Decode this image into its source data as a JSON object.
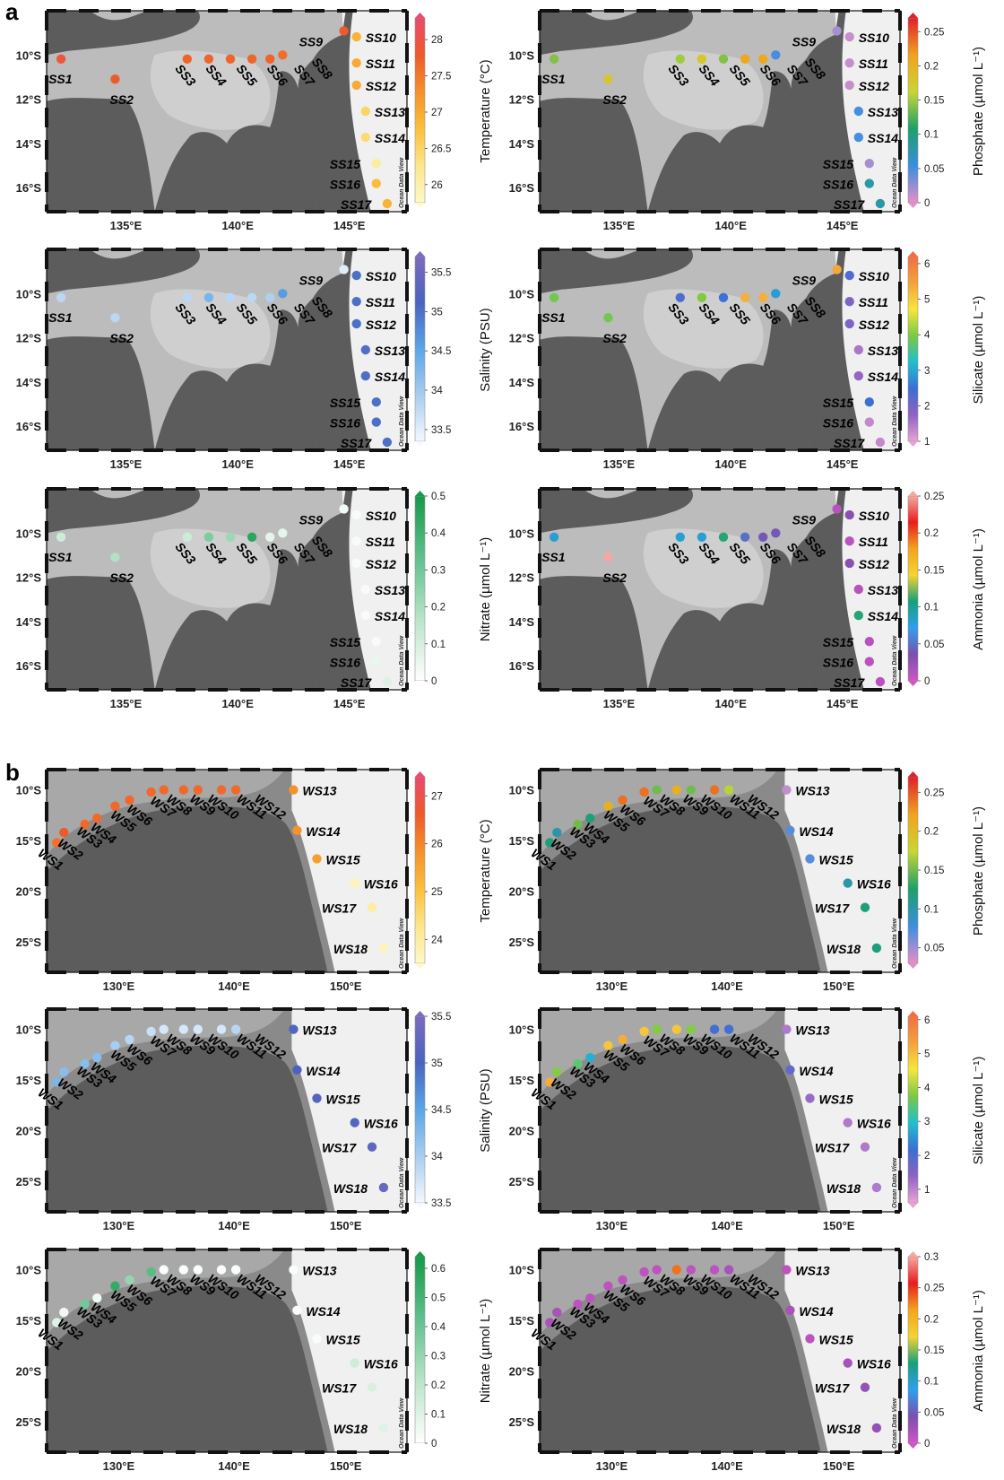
{
  "figure": {
    "panel_labels": [
      "a",
      "b"
    ],
    "watermark": "Ocean Data View",
    "colors": {
      "land": "#5c5c5c",
      "ocean_shallow": "#f0f0f0",
      "ocean_mid": "#bcbcbc",
      "ocean_deep": "#8a8a8a"
    },
    "colormaps": {
      "temperature": [
        "#fff8c8",
        "#fde68a",
        "#fbbf3c",
        "#f5902a",
        "#ee5a2a",
        "#ea4a6e"
      ],
      "phosphate": [
        "#e58fc8",
        "#3a8ee0",
        "#1aa06a",
        "#c9d631",
        "#f2a21e",
        "#e0202a"
      ],
      "salinity": [
        "#f4f8ff",
        "#a9cdf0",
        "#5aa6e6",
        "#4a63c0",
        "#7b6bbd"
      ],
      "nitrate": [
        "#ffffff",
        "#b9e4c8",
        "#60c08c",
        "#149a4a"
      ],
      "silicate": [
        "#e9a2d5",
        "#8f62c2",
        "#3b6fd4",
        "#1ec0cf",
        "#7ac943",
        "#f6e63b",
        "#f4a23a",
        "#f26e42"
      ],
      "ammonia": [
        "#cf55c4",
        "#7c4fae",
        "#2d9ff0",
        "#14a07a",
        "#f3d431",
        "#f5a31c",
        "#ea1c1c",
        "#f6a8a0"
      ]
    }
  },
  "chart_data": [
    {
      "type": "scatter",
      "panel": "a",
      "variable": "Temperature",
      "colormap": "temperature",
      "cb_title": "Temperature (°C)",
      "xlim": [
        131.5,
        146.8
      ],
      "ylim": [
        8.6,
        17.1
      ],
      "xticks": [
        "135°E",
        "140°E",
        "145°E"
      ],
      "yticks": [
        "10°S",
        "12°S",
        "14°S",
        "16°S"
      ],
      "cb_range": [
        25.75,
        28.3
      ],
      "cb_ticks": [
        "26",
        "26.5",
        "27",
        "27.5",
        "28"
      ],
      "stations": [
        "SS1",
        "SS2",
        "SS3",
        "SS4",
        "SS5",
        "SS6",
        "SS7",
        "SS8",
        "SS9",
        "SS10",
        "SS11",
        "SS12",
        "SS13",
        "SS14",
        "SS15",
        "SS16",
        "SS17"
      ],
      "values": [
        27.9,
        27.8,
        27.7,
        27.7,
        27.7,
        27.7,
        27.7,
        27.6,
        27.8,
        26.9,
        27.0,
        27.0,
        26.5,
        26.4,
        26.1,
        26.8,
        26.9
      ]
    },
    {
      "type": "scatter",
      "panel": "a",
      "variable": "Phosphate",
      "colormap": "phosphate",
      "cb_title": "Phosphate (µmol L⁻¹)",
      "xlim": [
        131.5,
        146.8
      ],
      "ylim": [
        8.6,
        17.1
      ],
      "xticks": [
        "135°E",
        "140°E",
        "145°E"
      ],
      "yticks": [
        "10°S",
        "12°S",
        "14°S",
        "16°S"
      ],
      "cb_range": [
        0,
        0.27
      ],
      "cb_ticks": [
        "0",
        "0.05",
        "0.1",
        "0.15",
        "0.2",
        "0.25"
      ],
      "stations": [
        "SS1",
        "SS2",
        "SS3",
        "SS4",
        "SS5",
        "SS6",
        "SS7",
        "SS8",
        "SS9",
        "SS10",
        "SS11",
        "SS12",
        "SS13",
        "SS14",
        "SS15",
        "SS16",
        "SS17"
      ],
      "values": [
        0.14,
        0.18,
        0.15,
        0.18,
        0.14,
        0.21,
        0.21,
        0.05,
        0.02,
        0.01,
        0.01,
        0.01,
        0.05,
        0.05,
        0.02,
        0.08,
        0.08
      ]
    },
    {
      "type": "scatter",
      "panel": "a",
      "variable": "Salinity",
      "colormap": "salinity",
      "cb_title": "Salinity (PSU)",
      "xlim": [
        131.5,
        146.8
      ],
      "ylim": [
        8.6,
        17.1
      ],
      "xticks": [
        "135°E",
        "140°E",
        "145°E"
      ],
      "yticks": [
        "10°S",
        "12°S",
        "14°S",
        "16°S"
      ],
      "cb_range": [
        33.35,
        35.7
      ],
      "cb_ticks": [
        "33.5",
        "34",
        "34.5",
        "35",
        "35.5"
      ],
      "stations": [
        "SS1",
        "SS2",
        "SS3",
        "SS4",
        "SS5",
        "SS6",
        "SS7",
        "SS8",
        "SS9",
        "SS10",
        "SS11",
        "SS12",
        "SS13",
        "SS14",
        "SS15",
        "SS16",
        "SS17"
      ],
      "values": [
        33.8,
        33.8,
        33.8,
        34.3,
        33.8,
        33.8,
        33.9,
        34.6,
        33.5,
        35.0,
        35.0,
        35.0,
        35.0,
        35.0,
        35.0,
        35.0,
        35.0
      ]
    },
    {
      "type": "scatter",
      "panel": "a",
      "variable": "Silicate",
      "colormap": "silicate",
      "cb_title": "Silicate (µmol L⁻¹)",
      "xlim": [
        131.5,
        146.8
      ],
      "ylim": [
        8.6,
        17.1
      ],
      "xticks": [
        "135°E",
        "140°E",
        "145°E"
      ],
      "yticks": [
        "10°S",
        "12°S",
        "14°S",
        "16°S"
      ],
      "cb_range": [
        1,
        6.2
      ],
      "cb_ticks": [
        "1",
        "2",
        "3",
        "4",
        "5",
        "6"
      ],
      "stations": [
        "SS1",
        "SS2",
        "SS3",
        "SS4",
        "SS5",
        "SS6",
        "SS7",
        "SS8",
        "SS9",
        "SS10",
        "SS11",
        "SS12",
        "SS13",
        "SS14",
        "SS15",
        "SS16",
        "SS17"
      ],
      "values": [
        3.9,
        3.9,
        2.3,
        4.0,
        2.5,
        5.3,
        5.3,
        2.9,
        5.4,
        2.3,
        1.9,
        1.9,
        1.5,
        1.7,
        2.5,
        1.3,
        1.3
      ]
    },
    {
      "type": "scatter",
      "panel": "a",
      "variable": "Nitrate",
      "colormap": "nitrate",
      "cb_title": "Nitrate (µmol L⁻¹)",
      "xlim": [
        131.5,
        146.8
      ],
      "ylim": [
        8.6,
        17.1
      ],
      "xticks": [
        "135°E",
        "140°E",
        "145°E"
      ],
      "yticks": [
        "10°S",
        "12°S",
        "14°S",
        "16°S"
      ],
      "cb_range": [
        0,
        0.5
      ],
      "cb_ticks": [
        "0",
        "0.1",
        "0.2",
        "0.3",
        "0.4",
        "0.5"
      ],
      "stations": [
        "SS1",
        "SS2",
        "SS3",
        "SS4",
        "SS5",
        "SS6",
        "SS7",
        "SS8",
        "SS9",
        "SS10",
        "SS11",
        "SS12",
        "SS13",
        "SS14",
        "SS15",
        "SS16",
        "SS17"
      ],
      "values": [
        0.12,
        0.18,
        0.12,
        0.28,
        0.22,
        0.45,
        0.06,
        0.06,
        0.03,
        0.02,
        0.02,
        0.02,
        0.02,
        0.02,
        0.02,
        0.05,
        0.08
      ]
    },
    {
      "type": "scatter",
      "panel": "a",
      "variable": "Ammonia",
      "colormap": "ammonia",
      "cb_title": "Ammonia (µmol L⁻¹)",
      "xlim": [
        131.5,
        146.8
      ],
      "ylim": [
        8.6,
        17.1
      ],
      "xticks": [
        "135°E",
        "140°E",
        "145°E"
      ],
      "yticks": [
        "10°S",
        "12°S",
        "14°S",
        "16°S"
      ],
      "cb_range": [
        0,
        0.25
      ],
      "cb_ticks": [
        "0",
        "0.05",
        "0.1",
        "0.15",
        "0.2",
        "0.25"
      ],
      "stations": [
        "SS1",
        "SS2",
        "SS3",
        "SS4",
        "SS5",
        "SS6",
        "SS7",
        "SS8",
        "SS9",
        "SS10",
        "SS11",
        "SS12",
        "SS13",
        "SS14",
        "SS15",
        "SS16",
        "SS17"
      ],
      "values": [
        0.08,
        0.25,
        0.08,
        0.08,
        0.11,
        0.05,
        0.04,
        0.04,
        0.01,
        0.03,
        0.01,
        0.03,
        0.01,
        0.11,
        0.01,
        0.01,
        0.01
      ]
    },
    {
      "type": "scatter",
      "panel": "b",
      "variable": "Temperature",
      "colormap": "temperature",
      "cb_title": "Temperature (°C)",
      "xlim": [
        121.5,
        154.7
      ],
      "ylim": [
        8.3,
        26.3
      ],
      "xticks": [
        "130°E",
        "140°E",
        "150°E"
      ],
      "yticks": [
        "10°S",
        "15°S",
        "20°S",
        "25°S"
      ],
      "cb_range": [
        23.5,
        27.4
      ],
      "cb_ticks": [
        "24",
        "25",
        "26",
        "27"
      ],
      "stations": [
        "WS1",
        "WS2",
        "WS3",
        "WS4",
        "WS5",
        "WS6",
        "WS7",
        "WS8",
        "WS9",
        "WS10",
        "WS11",
        "WS12",
        "WS13",
        "WS14",
        "WS15",
        "WS16",
        "WS17",
        "WS18"
      ],
      "values": [
        26.3,
        26.6,
        26.4,
        26.4,
        26.4,
        26.4,
        26.4,
        26.4,
        26.4,
        26.4,
        26.4,
        26.4,
        25.8,
        25.8,
        25.6,
        23.7,
        24.0,
        23.7
      ]
    },
    {
      "type": "scatter",
      "panel": "b",
      "variable": "Phosphate",
      "colormap": "phosphate",
      "cb_title": "Phosphate (µmol L⁻¹)",
      "xlim": [
        121.5,
        154.7
      ],
      "ylim": [
        8.3,
        26.3
      ],
      "xticks": [
        "130°E",
        "140°E",
        "150°E"
      ],
      "yticks": [
        "10°S",
        "15°S",
        "20°S",
        "25°S"
      ],
      "cb_range": [
        0.03,
        0.27
      ],
      "cb_ticks": [
        "0.05",
        "0.1",
        "0.15",
        "0.2",
        "0.25"
      ],
      "stations": [
        "WS1",
        "WS2",
        "WS3",
        "WS4",
        "WS5",
        "WS6",
        "WS7",
        "WS8",
        "WS9",
        "WS10",
        "WS11",
        "WS12",
        "WS13",
        "WS14",
        "WS15",
        "WS16",
        "WS17",
        "WS18"
      ],
      "values": [
        0.12,
        0.1,
        0.15,
        0.12,
        0.21,
        0.24,
        0.24,
        0.15,
        0.21,
        0.15,
        0.24,
        0.17,
        0.04,
        0.07,
        0.07,
        0.1,
        0.12,
        0.12
      ]
    },
    {
      "type": "scatter",
      "panel": "b",
      "variable": "Salinity",
      "colormap": "salinity",
      "cb_title": "Salinity (PSU)",
      "xlim": [
        121.5,
        154.7
      ],
      "ylim": [
        8.3,
        26.3
      ],
      "xticks": [
        "130°E",
        "140°E",
        "150°E"
      ],
      "yticks": [
        "10°S",
        "15°S",
        "20°S",
        "25°S"
      ],
      "cb_range": [
        33.5,
        35.5
      ],
      "cb_ticks": [
        "33.5",
        "34",
        "34.5",
        "35",
        "35.5"
      ],
      "stations": [
        "WS1",
        "WS2",
        "WS3",
        "WS4",
        "WS5",
        "WS6",
        "WS7",
        "WS8",
        "WS9",
        "WS10",
        "WS11",
        "WS12",
        "WS13",
        "WS14",
        "WS15",
        "WS16",
        "WS17",
        "WS18"
      ],
      "values": [
        34.3,
        34.2,
        34.2,
        34.2,
        34.0,
        33.9,
        33.8,
        33.7,
        33.7,
        33.7,
        33.7,
        33.9,
        35.1,
        35.0,
        35.1,
        35.1,
        35.2,
        35.3
      ]
    },
    {
      "type": "scatter",
      "panel": "b",
      "variable": "Silicate",
      "colormap": "silicate",
      "cb_title": "Silicate (µmol L⁻¹)",
      "xlim": [
        121.5,
        154.7
      ],
      "ylim": [
        8.3,
        26.3
      ],
      "xticks": [
        "130°E",
        "140°E",
        "150°E"
      ],
      "yticks": [
        "10°S",
        "15°S",
        "20°S",
        "25°S"
      ],
      "cb_range": [
        0.6,
        6.1
      ],
      "cb_ticks": [
        "1",
        "2",
        "3",
        "4",
        "5",
        "6"
      ],
      "stations": [
        "WS1",
        "WS2",
        "WS3",
        "WS4",
        "WS5",
        "WS6",
        "WS7",
        "WS8",
        "WS9",
        "WS10",
        "WS11",
        "WS12",
        "WS13",
        "WS14",
        "WS15",
        "WS16",
        "WS17",
        "WS18"
      ],
      "values": [
        5.2,
        3.8,
        3.5,
        2.8,
        4.9,
        5.2,
        4.9,
        3.8,
        4.9,
        3.8,
        2.1,
        2.1,
        1.1,
        1.8,
        1.3,
        1.1,
        1.1,
        1.1
      ]
    },
    {
      "type": "scatter",
      "panel": "b",
      "variable": "Nitrate",
      "colormap": "nitrate",
      "cb_title": "Nitrate (µmol L⁻¹)",
      "xlim": [
        121.5,
        154.7
      ],
      "ylim": [
        8.3,
        26.3
      ],
      "xticks": [
        "130°E",
        "140°E",
        "150°E"
      ],
      "yticks": [
        "10°S",
        "15°S",
        "20°S",
        "25°S"
      ],
      "cb_range": [
        0,
        0.64
      ],
      "cb_ticks": [
        "0",
        "0.1",
        "0.2",
        "0.3",
        "0.4",
        "0.5",
        "0.6"
      ],
      "stations": [
        "WS1",
        "WS2",
        "WS3",
        "WS4",
        "WS5",
        "WS6",
        "WS7",
        "WS8",
        "WS9",
        "WS10",
        "WS11",
        "WS12",
        "WS13",
        "WS14",
        "WS15",
        "WS16",
        "WS17",
        "WS18"
      ],
      "values": [
        0.1,
        0.05,
        0.38,
        0.05,
        0.55,
        0.3,
        0.45,
        0.02,
        0.02,
        0.02,
        0.02,
        0.02,
        0.02,
        0.02,
        0.02,
        0.15,
        0.12,
        0.1
      ]
    },
    {
      "type": "scatter",
      "panel": "b",
      "variable": "Ammonia",
      "colormap": "ammonia",
      "cb_title": "Ammonia (µmol L⁻¹)",
      "xlim": [
        121.5,
        154.7
      ],
      "ylim": [
        8.3,
        26.3
      ],
      "xticks": [
        "130°E",
        "140°E",
        "150°E"
      ],
      "yticks": [
        "10°S",
        "15°S",
        "20°S",
        "25°S"
      ],
      "cb_range": [
        0,
        0.3
      ],
      "cb_ticks": [
        "0",
        "0.05",
        "0.1",
        "0.15",
        "0.2",
        "0.25",
        "0.3"
      ],
      "stations": [
        "WS1",
        "WS2",
        "WS3",
        "WS4",
        "WS5",
        "WS6",
        "WS7",
        "WS8",
        "WS9",
        "WS10",
        "WS11",
        "WS12",
        "WS13",
        "WS14",
        "WS15",
        "WS16",
        "WS17",
        "WS18"
      ],
      "values": [
        0.02,
        0.02,
        0.01,
        0.01,
        0.01,
        0.01,
        0.01,
        0.01,
        0.23,
        0.01,
        0.01,
        0.02,
        0.01,
        0.02,
        0.01,
        0.02,
        0.03,
        0.03
      ]
    }
  ]
}
